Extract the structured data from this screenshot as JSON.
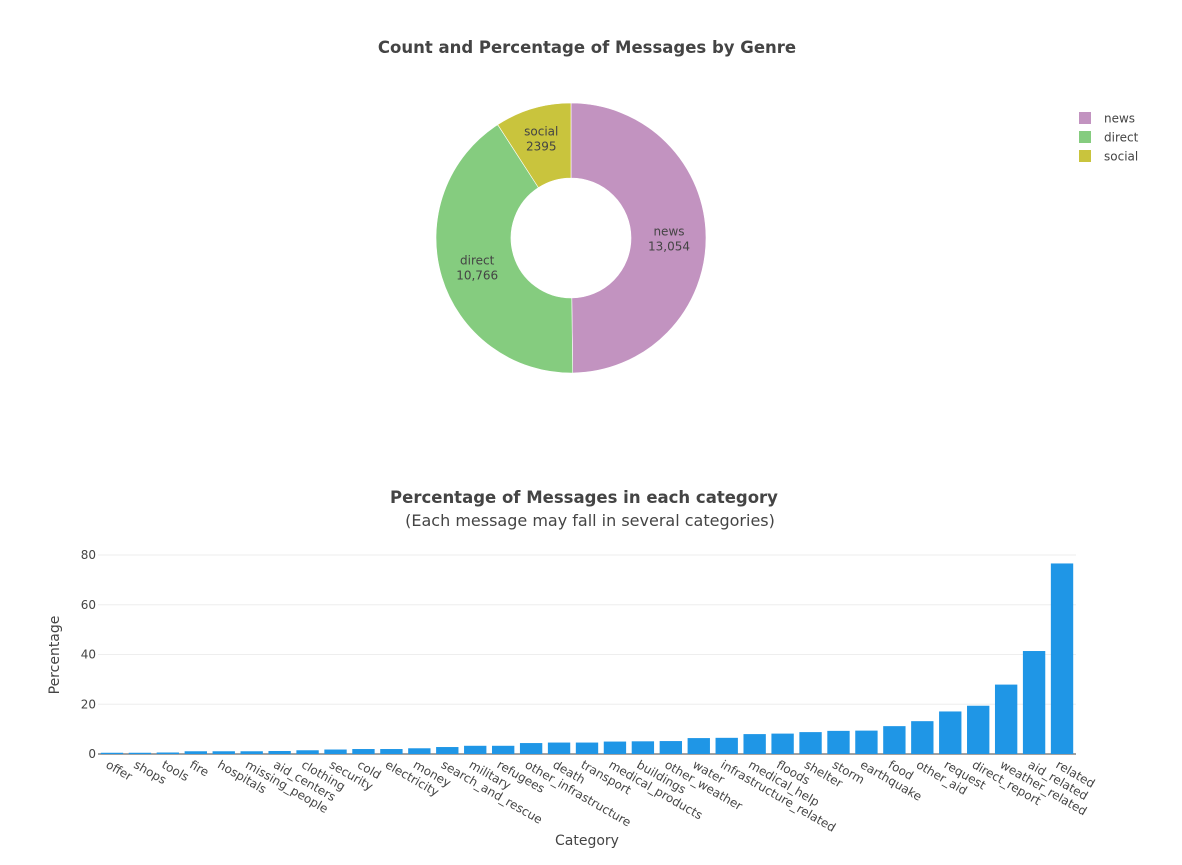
{
  "charts": [
    {
      "chart_data": {
        "type": "pie",
        "hole": true,
        "title": "Count and Percentage of Messages by Genre",
        "labels": [
          "news",
          "direct",
          "social"
        ],
        "values": [
          13054,
          10766,
          2395
        ],
        "value_labels": [
          "13,054",
          "10,766",
          "2395"
        ],
        "colors": [
          "#c293c0",
          "#85cc7f",
          "#c9c43d"
        ],
        "legend": {
          "entries": [
            "news",
            "direct",
            "social"
          ],
          "position": "top-right"
        }
      }
    },
    {
      "chart_data": {
        "type": "bar",
        "title": "Percentage of Messages in each category",
        "subtitle": "(Each message may fall in several categories)",
        "xlabel": "Category",
        "ylabel": "Percentage",
        "ylim": [
          0,
          80
        ],
        "yticks": [
          0,
          20,
          40,
          60,
          80
        ],
        "grid": true,
        "color": "#1f96e6",
        "categories": [
          "offer",
          "shops",
          "tools",
          "fire",
          "hospitals",
          "missing_people",
          "aid_centers",
          "clothing",
          "security",
          "cold",
          "electricity",
          "money",
          "search_and_rescue",
          "military",
          "refugees",
          "other_infrastructure",
          "death",
          "transport",
          "medical_products",
          "buildings",
          "other_weather",
          "water",
          "infrastructure_related",
          "medical_help",
          "floods",
          "shelter",
          "storm",
          "earthquake",
          "food",
          "other_aid",
          "request",
          "direct_report",
          "weather_related",
          "aid_related",
          "related"
        ],
        "values": [
          0.5,
          0.5,
          0.6,
          1.1,
          1.1,
          1.1,
          1.2,
          1.5,
          1.8,
          2.0,
          2.0,
          2.3,
          2.8,
          3.3,
          3.3,
          4.4,
          4.6,
          4.6,
          5.0,
          5.1,
          5.2,
          6.4,
          6.5,
          8.0,
          8.2,
          8.8,
          9.3,
          9.4,
          11.2,
          13.2,
          17.1,
          19.4,
          27.9,
          41.4,
          76.6
        ]
      }
    }
  ]
}
